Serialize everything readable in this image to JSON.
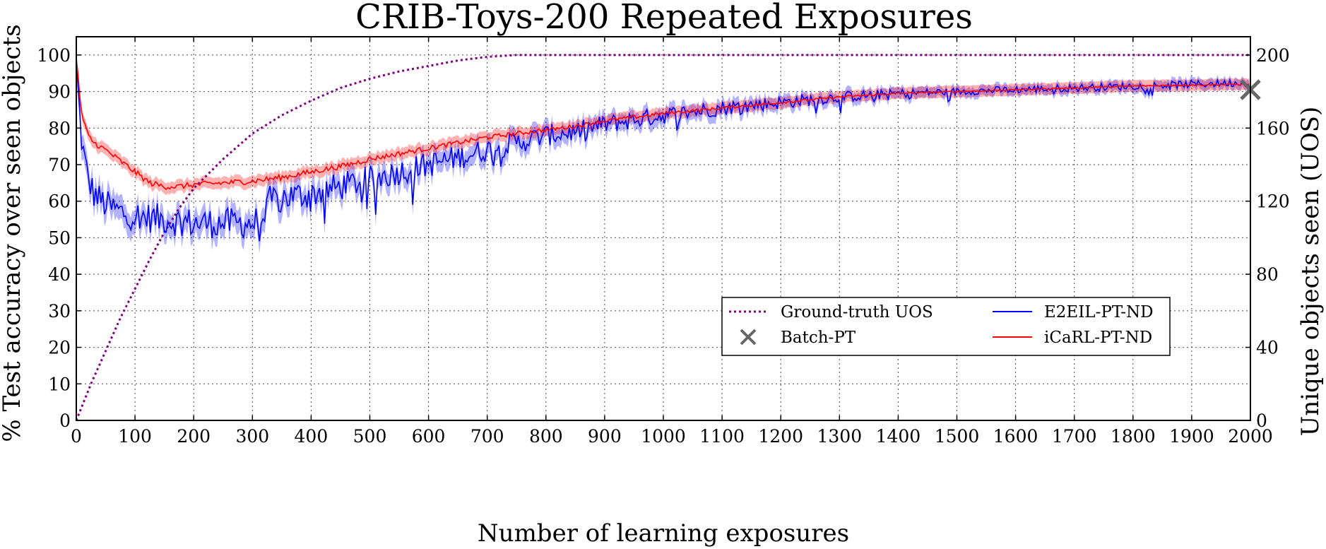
{
  "chart_data": {
    "type": "line",
    "title": "CRIB-Toys-200 Repeated Exposures",
    "xlabel": "Number of learning exposures",
    "ylabel": "% Test accuracy over seen objects",
    "y2label": "Unique objects seen (UOS)",
    "xlim": [
      0,
      2000
    ],
    "ylim": [
      0,
      105
    ],
    "y2lim": [
      0,
      210
    ],
    "x_ticks": [
      0,
      100,
      200,
      300,
      400,
      500,
      600,
      700,
      800,
      900,
      1000,
      1100,
      1200,
      1300,
      1400,
      1500,
      1600,
      1700,
      1800,
      1900,
      2000
    ],
    "y_ticks": [
      0,
      10,
      20,
      30,
      40,
      50,
      60,
      70,
      80,
      90,
      100
    ],
    "y2_ticks": [
      0,
      40,
      80,
      120,
      160,
      200
    ],
    "grid": true,
    "legend_position": "center-right",
    "legend": [
      {
        "label": "Ground-truth UOS",
        "style": "dotted",
        "color": "#800080"
      },
      {
        "label": "E2EIL-PT-ND",
        "style": "solid",
        "color": "#0000ff"
      },
      {
        "label": "Batch-PT",
        "style": "x-marker",
        "color": "#666666"
      },
      {
        "label": "iCaRL-PT-ND",
        "style": "solid",
        "color": "#ff0000"
      }
    ],
    "series": [
      {
        "name": "Ground-truth UOS",
        "axis": "right",
        "color": "#800080",
        "x": [
          0,
          10,
          25,
          50,
          75,
          100,
          125,
          150,
          175,
          200,
          250,
          300,
          350,
          400,
          450,
          500,
          550,
          600,
          650,
          700,
          750,
          800,
          900,
          1000,
          1200,
          1400,
          1600,
          1800,
          2000
        ],
        "y": [
          0,
          8,
          20,
          38,
          56,
          72,
          88,
          103,
          116,
          127,
          143,
          157,
          167,
          175,
          182,
          187,
          191,
          194,
          197,
          199,
          200,
          200,
          200,
          200,
          200,
          200,
          200,
          200,
          200
        ]
      },
      {
        "name": "E2EIL-PT-ND",
        "axis": "left",
        "color": "#0000ff",
        "noise": 4.2,
        "x": [
          0,
          5,
          10,
          20,
          30,
          50,
          75,
          100,
          150,
          200,
          250,
          300,
          320,
          330,
          350,
          400,
          450,
          500,
          550,
          600,
          650,
          700,
          750,
          800,
          850,
          900,
          1000,
          1100,
          1200,
          1300,
          1400,
          1500,
          1600,
          1700,
          1800,
          1900,
          2000
        ],
        "y": [
          98,
          85,
          75,
          66,
          62,
          59,
          57,
          56,
          55,
          54,
          54,
          54,
          55,
          60,
          61,
          62,
          64,
          66,
          68,
          70,
          72,
          74,
          76,
          78,
          79,
          81,
          83.5,
          85.5,
          87,
          88.5,
          89.5,
          90,
          90.5,
          91,
          91.5,
          92,
          92.5
        ]
      },
      {
        "name": "iCaRL-PT-ND",
        "axis": "left",
        "color": "#ff0000",
        "noise": 0.8,
        "x": [
          0,
          5,
          10,
          20,
          30,
          50,
          75,
          100,
          125,
          150,
          175,
          200,
          250,
          300,
          350,
          400,
          450,
          500,
          550,
          600,
          650,
          700,
          750,
          800,
          850,
          900,
          1000,
          1100,
          1200,
          1300,
          1400,
          1500,
          1600,
          1700,
          1800,
          1900,
          2000
        ],
        "y": [
          100,
          90,
          83,
          78,
          76,
          74,
          71,
          68,
          65,
          64,
          64,
          64.5,
          65,
          65.5,
          66.5,
          68,
          69.5,
          71.5,
          73,
          74.5,
          76,
          77.5,
          78.5,
          79.5,
          80.5,
          82,
          84,
          85.5,
          87,
          88.5,
          89.5,
          90,
          90.5,
          91,
          91.5,
          91.8,
          92
        ]
      }
    ],
    "markers": [
      {
        "name": "Batch-PT",
        "axis": "left",
        "x": 2000,
        "y": 90.5,
        "color": "#666666"
      }
    ]
  }
}
